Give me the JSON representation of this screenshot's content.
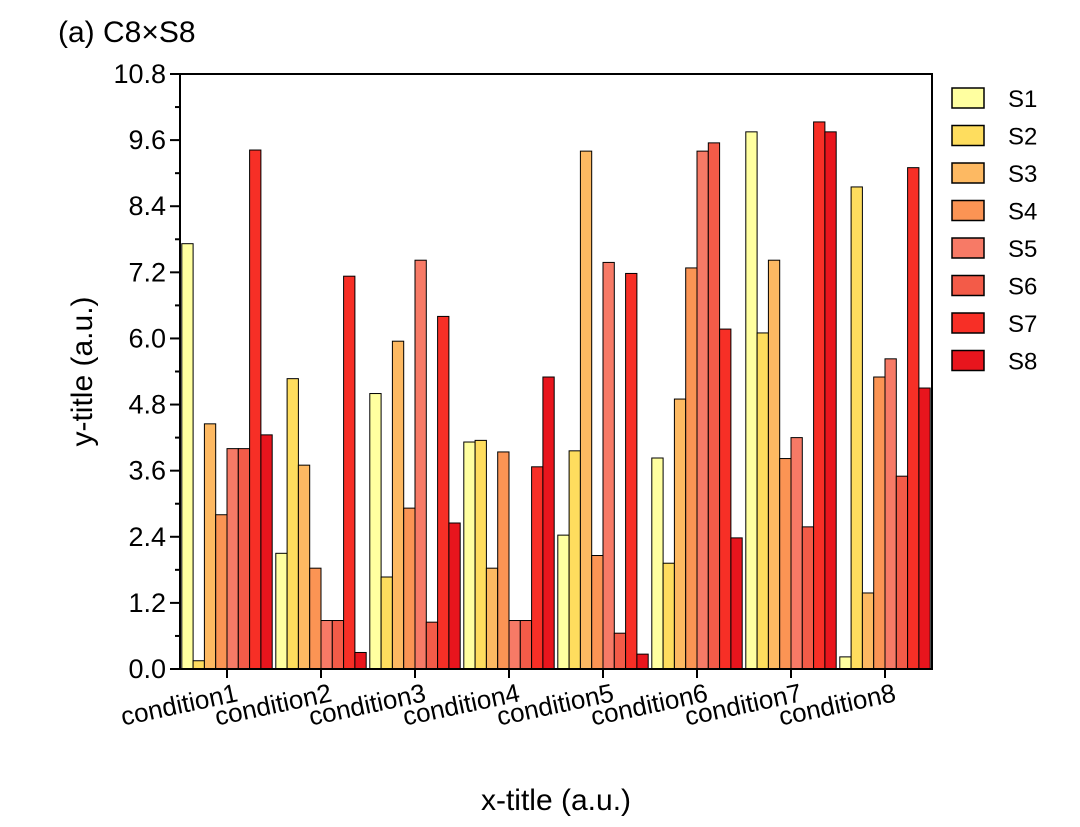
{
  "chart_data": {
    "type": "bar",
    "title": "(a) C8×S8",
    "xlabel": "x-title (a.u.)",
    "ylabel": "y-title (a.u.)",
    "ylim": [
      0,
      10.8
    ],
    "yticks": [
      0.0,
      1.2,
      2.4,
      3.6,
      4.8,
      6.0,
      7.2,
      8.4,
      9.6,
      10.8
    ],
    "ytick_labels": [
      "0.0",
      "1.2",
      "2.4",
      "3.6",
      "4.8",
      "6.0",
      "7.2",
      "8.4",
      "9.6",
      "10.8"
    ],
    "grid": false,
    "legend_position": "right",
    "categories": [
      "condition1",
      "condition2",
      "condition3",
      "condition4",
      "condition5",
      "condition6",
      "condition7",
      "condition8"
    ],
    "series": [
      {
        "name": "S1",
        "color": "#ffffa0",
        "values": [
          7.72,
          2.1,
          5.0,
          4.12,
          2.43,
          3.83,
          9.75,
          0.22
        ]
      },
      {
        "name": "S2",
        "color": "#fedd5e",
        "values": [
          0.15,
          5.27,
          1.67,
          4.15,
          3.96,
          1.92,
          6.1,
          8.75
        ]
      },
      {
        "name": "S3",
        "color": "#fdb962",
        "values": [
          4.45,
          3.7,
          5.95,
          1.83,
          9.4,
          4.9,
          7.42,
          1.38
        ]
      },
      {
        "name": "S4",
        "color": "#fb9454",
        "values": [
          2.8,
          1.83,
          2.92,
          3.94,
          2.06,
          7.28,
          3.82,
          5.3
        ]
      },
      {
        "name": "S5",
        "color": "#f77a66",
        "values": [
          4.0,
          0.88,
          7.42,
          0.88,
          7.38,
          9.4,
          4.2,
          5.63
        ]
      },
      {
        "name": "S6",
        "color": "#f35b48",
        "values": [
          4.0,
          0.88,
          0.85,
          0.88,
          0.65,
          9.55,
          2.58,
          3.5
        ]
      },
      {
        "name": "S7",
        "color": "#f72f26",
        "values": [
          9.42,
          7.13,
          6.4,
          3.67,
          7.18,
          6.17,
          9.93,
          9.1
        ]
      },
      {
        "name": "S8",
        "color": "#e8151d",
        "values": [
          4.25,
          0.3,
          2.65,
          5.3,
          0.27,
          2.38,
          9.75,
          5.1
        ]
      }
    ]
  }
}
